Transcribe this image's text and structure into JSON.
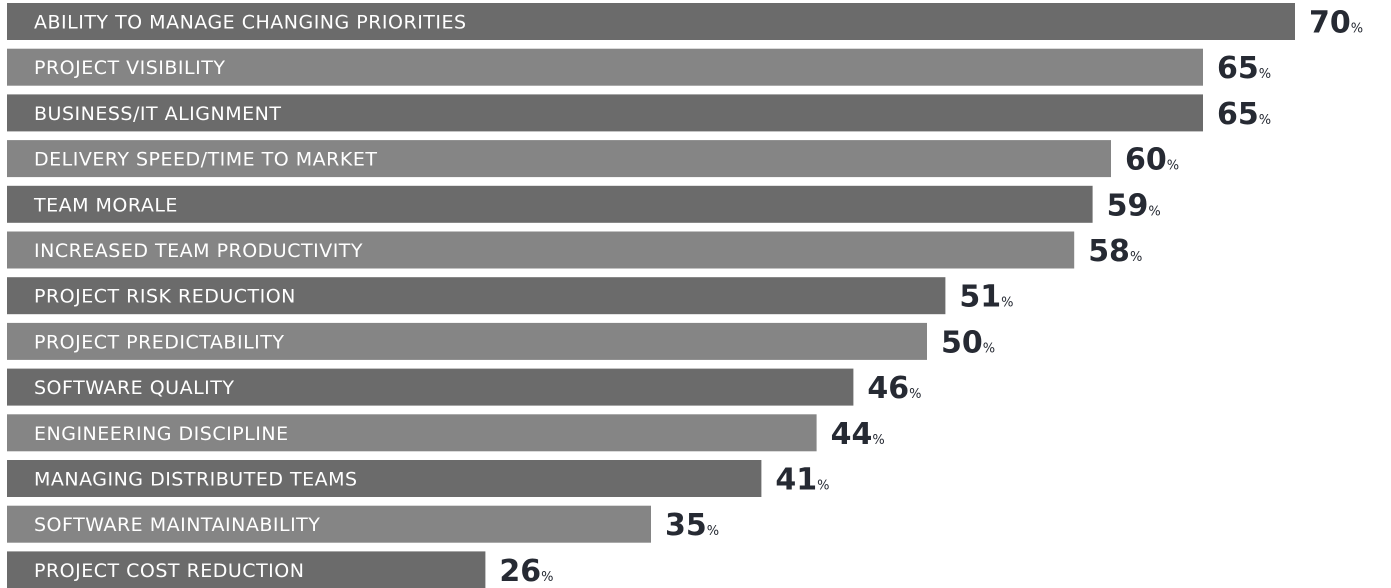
{
  "chart_data": {
    "type": "bar",
    "orientation": "horizontal",
    "categories": [
      "ABILITY TO MANAGE CHANGING PRIORITIES",
      "PROJECT VISIBILITY",
      "BUSINESS/IT ALIGNMENT",
      "DELIVERY SPEED/TIME TO MARKET",
      "TEAM MORALE",
      "INCREASED TEAM PRODUCTIVITY",
      "PROJECT RISK REDUCTION",
      "PROJECT PREDICTABILITY",
      "SOFTWARE QUALITY",
      "ENGINEERING DISCIPLINE",
      "MANAGING DISTRIBUTED TEAMS",
      "SOFTWARE MAINTAINABILITY",
      "PROJECT COST REDUCTION"
    ],
    "values": [
      70,
      65,
      65,
      60,
      59,
      58,
      51,
      50,
      46,
      44,
      41,
      35,
      26
    ],
    "value_suffix": "%",
    "grid": false,
    "legend": "none",
    "colors": {
      "bar_dark": "#6b6b6b",
      "bar_light": "#858585",
      "bar_label": "#ffffff",
      "value_label": "#262a33"
    }
  }
}
